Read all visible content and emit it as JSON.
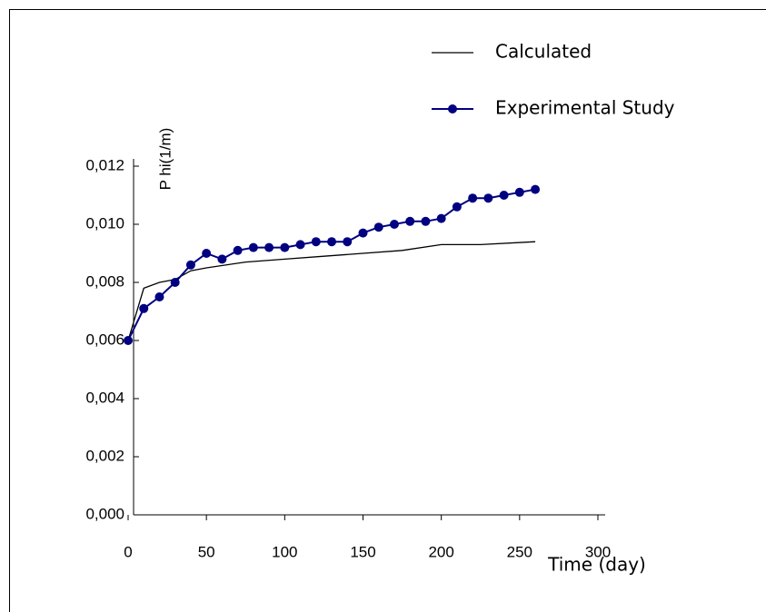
{
  "chart_data": {
    "type": "line",
    "x_label": "Time (day)",
    "y_label": "P hi(1/m)",
    "xlim": [
      0,
      300
    ],
    "xticks": [
      0,
      50,
      100,
      150,
      200,
      250,
      300
    ],
    "ylim": [
      0,
      0.012
    ],
    "yticks": [
      {
        "value": 0,
        "label": "0,000"
      },
      {
        "value": 0.002,
        "label": "0,002"
      },
      {
        "value": 0.004,
        "label": "0,004"
      },
      {
        "value": 0.006,
        "label": "0,006"
      },
      {
        "value": 0.008,
        "label": "0,008"
      },
      {
        "value": 0.01,
        "label": "0,010"
      },
      {
        "value": 0.012,
        "label": "0,012"
      }
    ],
    "legend": "upper right",
    "series": [
      {
        "name": "Calculated",
        "color": "#000000",
        "marker": false,
        "x": [
          0,
          10,
          20,
          30,
          40,
          50,
          75,
          100,
          125,
          150,
          175,
          200,
          225,
          260
        ],
        "values": [
          0.006,
          0.0078,
          0.008,
          0.0081,
          0.0084,
          0.0085,
          0.0087,
          0.0088,
          0.0089,
          0.009,
          0.0091,
          0.0093,
          0.0093,
          0.0094
        ]
      },
      {
        "name": "Experimental Study",
        "color": "#000080",
        "marker": true,
        "x": [
          0,
          10,
          20,
          30,
          40,
          50,
          60,
          70,
          80,
          90,
          100,
          110,
          120,
          130,
          140,
          150,
          160,
          170,
          180,
          190,
          200,
          210,
          220,
          230,
          240,
          250,
          260
        ],
        "values": [
          0.006,
          0.0071,
          0.0075,
          0.008,
          0.0086,
          0.009,
          0.0088,
          0.0091,
          0.0092,
          0.0092,
          0.0092,
          0.0093,
          0.0094,
          0.0094,
          0.0094,
          0.0097,
          0.0099,
          0.01,
          0.0101,
          0.0101,
          0.0102,
          0.0106,
          0.0109,
          0.0109,
          0.011,
          0.0111,
          0.0112
        ]
      }
    ]
  }
}
